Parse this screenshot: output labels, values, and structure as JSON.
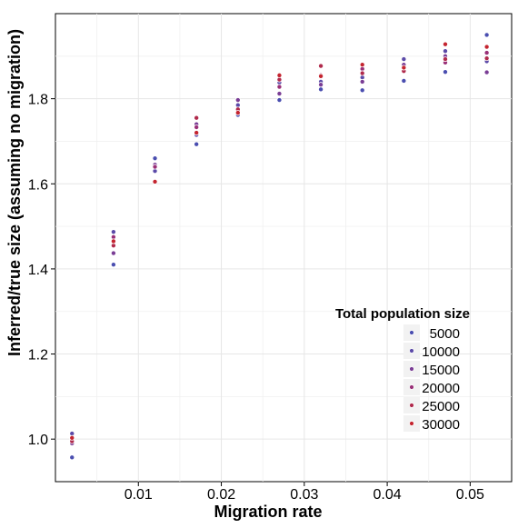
{
  "chart_data": {
    "type": "scatter",
    "xlabel": "Migration rate",
    "ylabel": "Inferred/true size (assuming no migration)",
    "xlim": [
      0,
      0.055
    ],
    "ylim": [
      0.9,
      2.0
    ],
    "x_ticks": [
      0.01,
      0.02,
      0.03,
      0.04,
      0.05
    ],
    "x_tick_labels": [
      "0.01",
      "0.02",
      "0.03",
      "0.04",
      "0.05"
    ],
    "y_ticks": [
      1.0,
      1.2,
      1.4,
      1.6,
      1.8
    ],
    "y_tick_labels": [
      "1.0",
      "1.2",
      "1.4",
      "1.6",
      "1.8"
    ],
    "grid": true,
    "legend": {
      "title": "Total population size",
      "placement": "bottom-right",
      "entries": [
        "5000",
        "10000",
        "15000",
        "20000",
        "25000",
        "30000"
      ]
    },
    "series_colors": [
      "#4a4eb0",
      "#5b4aa8",
      "#7a3d95",
      "#993078",
      "#b02a4c",
      "#c42530"
    ],
    "series": [
      {
        "name": "5000",
        "x": [
          0.002,
          0.007,
          0.012,
          0.017,
          0.022,
          0.027,
          0.032,
          0.037,
          0.042,
          0.047,
          0.052
        ],
        "y": [
          0.957,
          1.41,
          1.66,
          1.693,
          1.762,
          1.797,
          1.822,
          1.82,
          1.842,
          1.863,
          1.95
        ]
      },
      {
        "name": "10000",
        "x": [
          0.002,
          0.007,
          0.012,
          0.017,
          0.022,
          0.027,
          0.032,
          0.037,
          0.042,
          0.047,
          0.052
        ],
        "y": [
          1.013,
          1.487,
          1.63,
          1.715,
          1.785,
          1.838,
          1.84,
          1.85,
          1.893,
          1.912,
          1.888
        ]
      },
      {
        "name": "15000",
        "x": [
          0.002,
          0.007,
          0.012,
          0.017,
          0.022,
          0.027,
          0.032,
          0.037,
          0.042,
          0.047,
          0.052
        ],
        "y": [
          0.99,
          1.437,
          1.645,
          1.74,
          1.797,
          1.812,
          1.833,
          1.84,
          1.88,
          1.9,
          1.862
        ]
      },
      {
        "name": "20000",
        "x": [
          0.002,
          0.007,
          0.012,
          0.017,
          0.022,
          0.027,
          0.032,
          0.037,
          0.042,
          0.047,
          0.052
        ],
        "y": [
          1.0,
          1.475,
          1.64,
          1.733,
          1.77,
          1.828,
          1.855,
          1.87,
          1.872,
          1.885,
          1.908
        ]
      },
      {
        "name": "25000",
        "x": [
          0.002,
          0.007,
          0.012,
          0.017,
          0.022,
          0.027,
          0.032,
          0.037,
          0.042,
          0.047,
          0.052
        ],
        "y": [
          0.995,
          1.455,
          1.605,
          1.755,
          1.775,
          1.845,
          1.877,
          1.86,
          1.865,
          1.893,
          1.895
        ]
      },
      {
        "name": "30000",
        "x": [
          0.002,
          0.007,
          0.012,
          0.017,
          0.022,
          0.027,
          0.032,
          0.037,
          0.042,
          0.047,
          0.052
        ],
        "y": [
          1.003,
          1.465,
          1.605,
          1.72,
          1.767,
          1.855,
          1.853,
          1.88,
          1.873,
          1.928,
          1.922
        ]
      }
    ]
  }
}
